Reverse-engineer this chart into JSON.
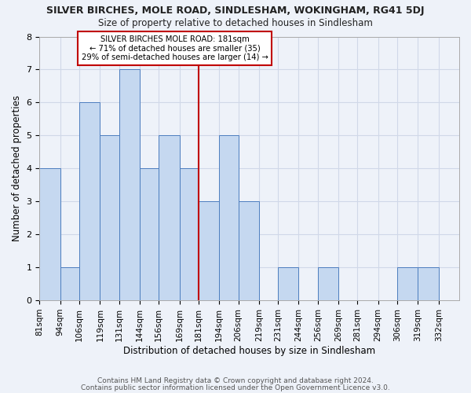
{
  "title": "SILVER BIRCHES, MOLE ROAD, SINDLESHAM, WOKINGHAM, RG41 5DJ",
  "subtitle": "Size of property relative to detached houses in Sindlesham",
  "xlabel": "Distribution of detached houses by size in Sindlesham",
  "ylabel": "Number of detached properties",
  "bin_edges": [
    81,
    94,
    106,
    119,
    131,
    144,
    156,
    169,
    181,
    194,
    206,
    219,
    231,
    244,
    256,
    269,
    281,
    294,
    306,
    319,
    332
  ],
  "counts": [
    4,
    1,
    6,
    5,
    7,
    4,
    5,
    4,
    3,
    5,
    3,
    0,
    1,
    0,
    1,
    0,
    0,
    0,
    1,
    1
  ],
  "bar_color": "#c5d8f0",
  "bar_edge_color": "#4d7ebf",
  "grid_color": "#d0d8e8",
  "marker_value": 181,
  "marker_color": "#c00000",
  "annotation_title": "SILVER BIRCHES MOLE ROAD: 181sqm",
  "annotation_line1": "← 71% of detached houses are smaller (35)",
  "annotation_line2": "29% of semi-detached houses are larger (14) →",
  "annotation_box_color": "#c00000",
  "annotation_bg_color": "#ffffff",
  "ylim": [
    0,
    8
  ],
  "yticks": [
    0,
    1,
    2,
    3,
    4,
    5,
    6,
    7,
    8
  ],
  "footer1": "Contains HM Land Registry data © Crown copyright and database right 2024.",
  "footer2": "Contains public sector information licensed under the Open Government Licence v3.0.",
  "bg_color": "#eef2f9"
}
